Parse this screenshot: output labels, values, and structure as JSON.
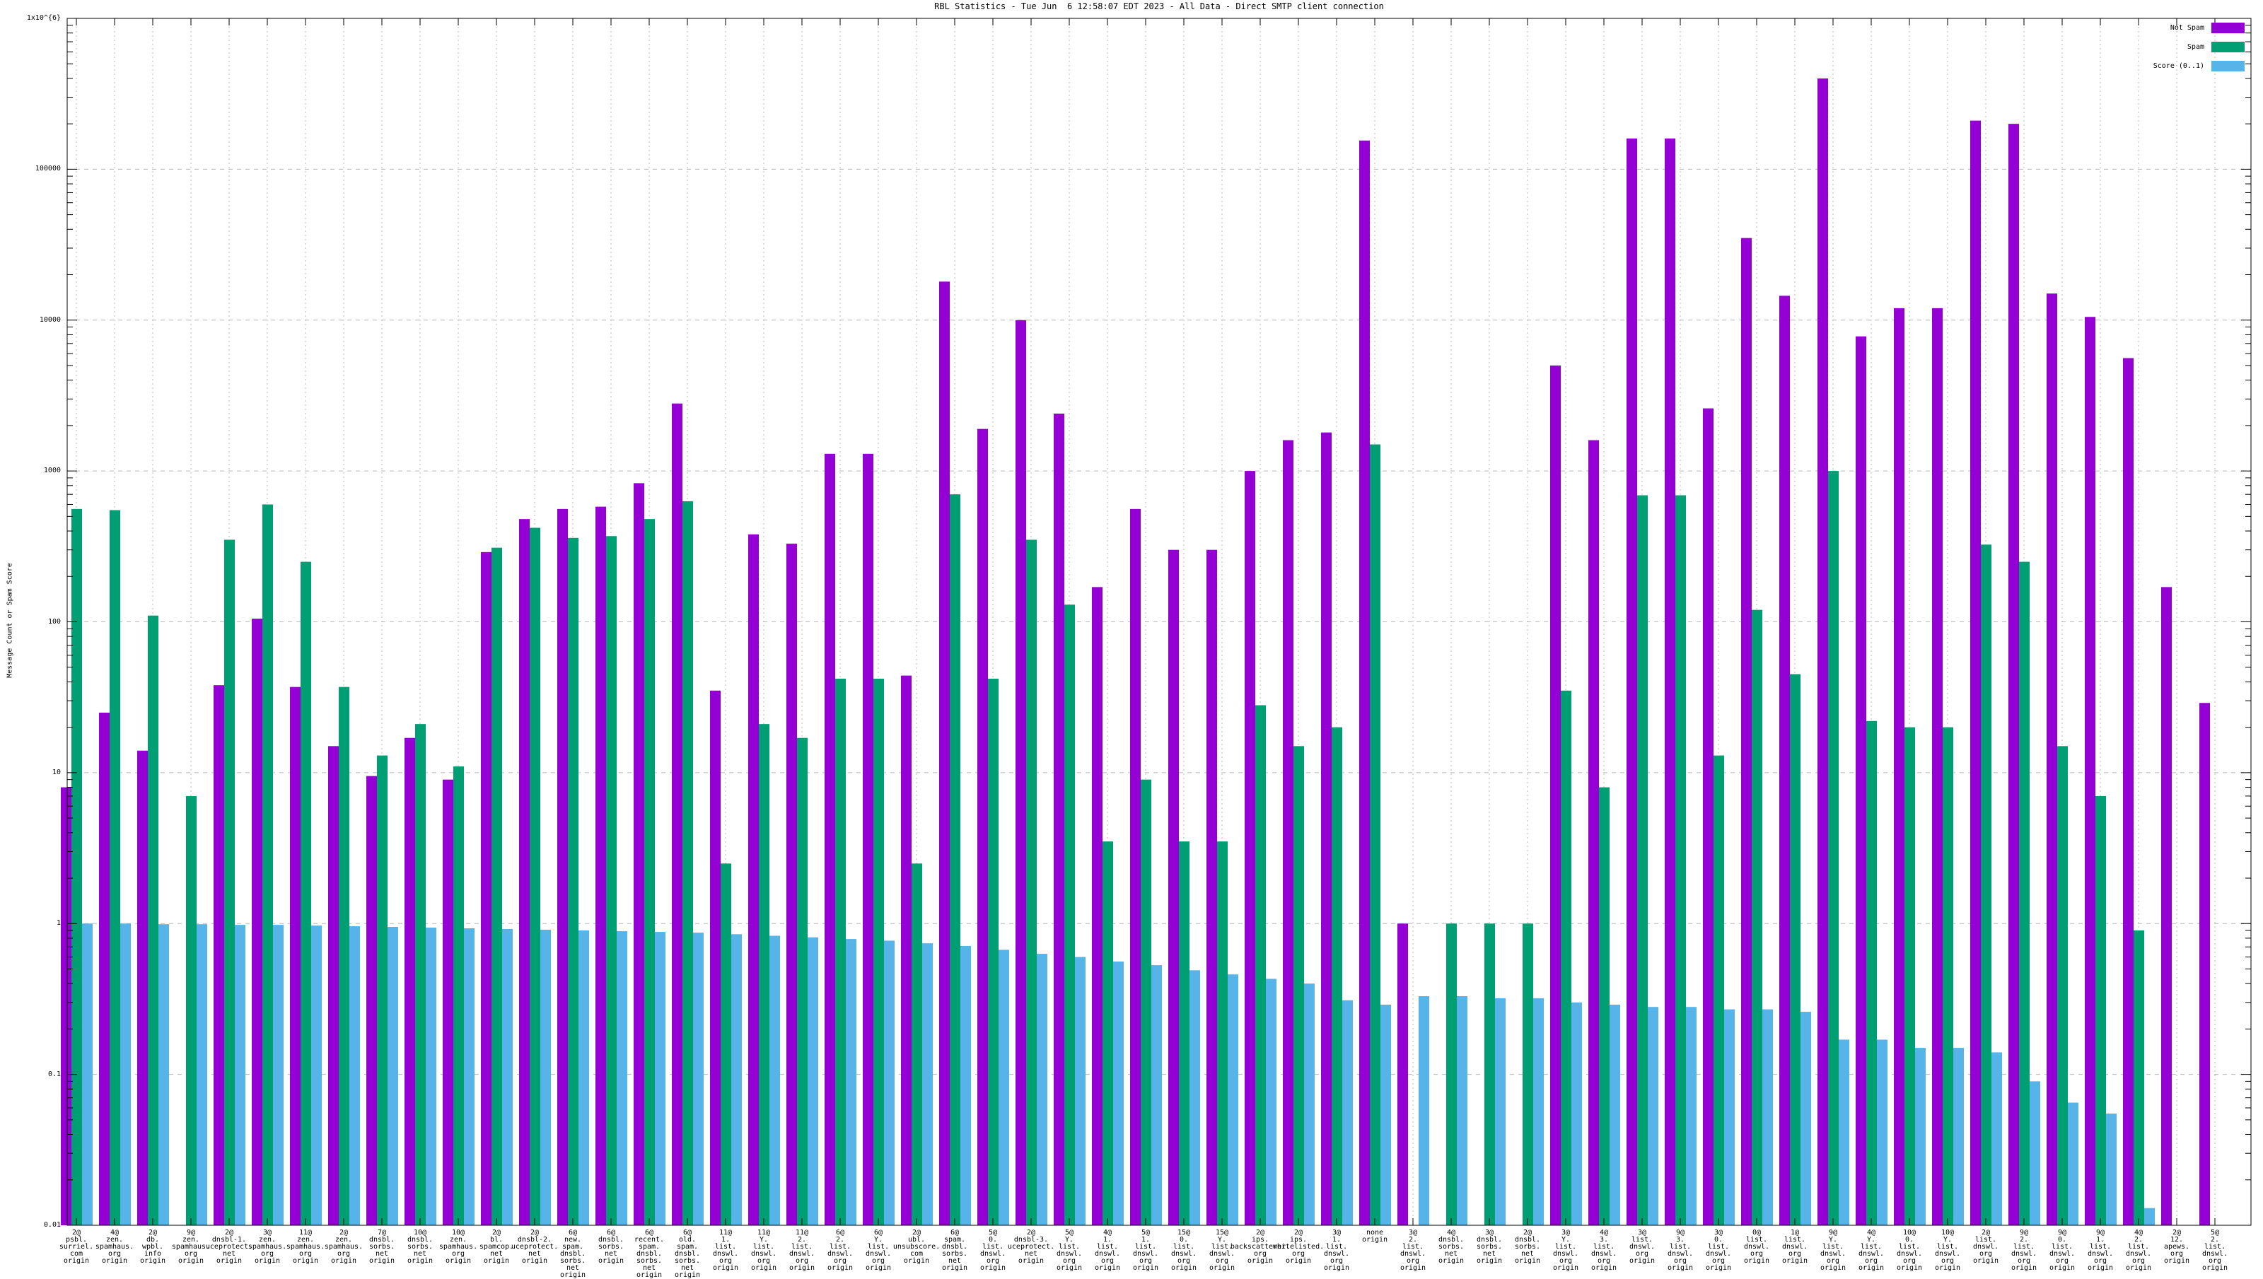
{
  "page": {
    "background": "#ffffff"
  },
  "chart_data": {
    "type": "bar",
    "title": "RBL Statistics - Tue Jun  6 12:58:07 EDT 2023 - All Data - Direct SMTP client connection",
    "ylabel": "Message Count or Spam Score",
    "grid": true,
    "legend_position": "top-right-inside",
    "yaxis": {
      "scale": "log",
      "min": 0.01,
      "max": 1000000,
      "tick_labels": [
        "1x10^{6}",
        "100000",
        "10000",
        "1000",
        "100",
        "10",
        "1",
        "0.1",
        "0.01"
      ],
      "tick_values": [
        1000000,
        100000,
        10000,
        1000,
        100,
        10,
        1,
        0.1,
        0.01
      ]
    },
    "colors": {
      "not_spam": "#9400D3",
      "spam": "#009E73",
      "score": "#56B4E9",
      "grid": "#b8b8b8",
      "axis": "#000000"
    },
    "legend": [
      {
        "label": "Not Spam",
        "color": "#9400D3"
      },
      {
        "label": "Spam",
        "color": "#009E73"
      },
      {
        "label": "Score (0..1)",
        "color": "#56B4E9"
      }
    ],
    "categories": [
      "2@\npsbl.\nsurriel.\ncom\norigin",
      "4@\nzen.\nspamhaus.\norg\norigin",
      "2@\ndb.\nwpbl.\ninfo\norigin",
      "9@\nzen.\nspamhaus.\norg\norigin",
      "2@\ndnsbl-1.\nuceprotect.\nnet\norigin",
      "3@\nzen.\nspamhaus.\norg\norigin",
      "11@\nzen.\nspamhaus.\norg\norigin",
      "2@\nzen.\nspamhaus.\norg\norigin",
      "7@\ndnsbl.\nsorbs.\nnet\norigin",
      "10@\ndnsbl.\nsorbs.\nnet\norigin",
      "10@\nzen.\nspamhaus.\norg\norigin",
      "2@\nbl.\nspamcop.\nnet\norigin",
      "2@\ndnsbl-2.\nuceprotect.\nnet\norigin",
      "6@\nnew.\nspam.\ndnsbl.\nsorbs.\nnet\norigin",
      "6@\ndnsbl.\nsorbs.\nnet\norigin",
      "6@\nrecent.\nspam.\ndnsbl.\nsorbs.\nnet\norigin",
      "6@\nold.\nspam.\ndnsbl.\nsorbs.\nnet\norigin",
      "11@\n1.\nlist.\ndnswl.\norg\norigin",
      "11@\nY.\nlist.\ndnswl.\norg\norigin",
      "11@\n2.\nlist.\ndnswl.\norg\norigin",
      "6@\n2.\nlist.\ndnswl.\norg\norigin",
      "6@\nY.\nlist.\ndnswl.\norg\norigin",
      "2@\nubl.\nunsubscore.\ncom\norigin",
      "6@\nspam.\ndnsbl.\nsorbs.\nnet\norigin",
      "5@\n0.\nlist.\ndnswl.\norg\norigin",
      "2@\ndnsbl-3.\nuceprotect.\nnet\norigin",
      "5@\nY.\nlist.\ndnswl.\norg\norigin",
      "4@\n1.\nlist.\ndnswl.\norg\norigin",
      "5@\n1.\nlist.\ndnswl.\norg\norigin",
      "15@\n0.\nlist.\ndnswl.\norg\norigin",
      "15@\nY.\nlist.\ndnswl.\norg\norigin",
      "2@\nips.\nbackscatterer.\norg\norigin",
      "2@\nips.\nwhitelisted.\norg\norigin",
      "3@\n1.\nlist.\ndnswl.\norg\norigin",
      "none\norigin",
      "3@\n2.\nlist.\ndnswl.\norg\norigin",
      "4@\ndnsbl.\nsorbs.\nnet\norigin",
      "3@\ndnsbl.\nsorbs.\nnet\norigin",
      "2@\ndnsbl.\nsorbs.\nnet\norigin",
      "3@\nY.\nlist.\ndnswl.\norg\norigin",
      "4@\n3.\nlist.\ndnswl.\norg\norigin",
      "3@\nlist.\ndnswl.\norg\norigin",
      "9@\n3.\nlist.\ndnswl.\norg\norigin",
      "3@\n0.\nlist.\ndnswl.\norg\norigin",
      "0@\nlist.\ndnswl.\norg\norigin",
      "1@\nlist.\ndnswl.\norg\norigin",
      "9@\nY.\nlist.\ndnswl.\norg\norigin",
      "4@\nY.\nlist.\ndnswl.\norg\norigin",
      "10@\n0.\nlist.\ndnswl.\norg\norigin",
      "10@\nY.\nlist.\ndnswl.\norg\norigin",
      "2@\nlist.\ndnswl.\norg\norigin",
      "9@\n2.\nlist.\ndnswl.\norg\norigin",
      "9@\n0.\nlist.\ndnswl.\norg\norigin",
      "9@\n1.\nlist.\ndnswl.\norg\norigin",
      "4@\n2.\nlist.\ndnswl.\norg\norigin",
      "2@\n12.\napews.\norg\norigin",
      "5@\n2.\nlist.\ndnswl.\norg\norigin"
    ],
    "series": [
      {
        "name": "Not Spam",
        "color": "#9400D3",
        "values": [
          8,
          25,
          14,
          null,
          38,
          105,
          37,
          15,
          9.5,
          17,
          9,
          290,
          480,
          560,
          580,
          830,
          2800,
          35,
          380,
          330,
          1300,
          1300,
          44,
          18000,
          1900,
          10000,
          2400,
          170,
          560,
          300,
          300,
          1000,
          1600,
          1800,
          155000,
          1,
          null,
          null,
          null,
          5000,
          1600,
          160000,
          160000,
          2600,
          35000,
          14500,
          400000,
          7800,
          12000,
          12000,
          210000,
          200000,
          15000,
          10500,
          5600,
          170,
          29
        ]
      },
      {
        "name": "Spam",
        "color": "#009E73",
        "values": [
          560,
          550,
          110,
          7,
          350,
          600,
          250,
          37,
          13,
          21,
          11,
          310,
          420,
          360,
          370,
          480,
          630,
          2.5,
          21,
          17,
          42,
          42,
          2.5,
          700,
          42,
          350,
          130,
          3.5,
          9,
          3.5,
          3.5,
          28,
          15,
          20,
          1500,
          null,
          1,
          1,
          1,
          35,
          8,
          690,
          690,
          13,
          120,
          45,
          1000,
          22,
          20,
          20,
          325,
          250,
          15,
          7,
          0.9,
          null,
          null
        ]
      },
      {
        "name": "Score (0..1)",
        "color": "#56B4E9",
        "values": [
          1.0,
          1.0,
          0.99,
          0.99,
          0.98,
          0.98,
          0.97,
          0.96,
          0.95,
          0.94,
          0.93,
          0.92,
          0.91,
          0.9,
          0.89,
          0.88,
          0.87,
          0.85,
          0.83,
          0.81,
          0.79,
          0.77,
          0.74,
          0.71,
          0.67,
          0.63,
          0.6,
          0.56,
          0.53,
          0.49,
          0.46,
          0.43,
          0.4,
          0.31,
          0.29,
          0.33,
          0.33,
          0.32,
          0.32,
          0.3,
          0.29,
          0.28,
          0.28,
          0.27,
          0.27,
          0.26,
          0.17,
          0.17,
          0.15,
          0.15,
          0.14,
          0.09,
          0.065,
          0.055,
          0.013,
          null,
          null
        ]
      }
    ]
  }
}
